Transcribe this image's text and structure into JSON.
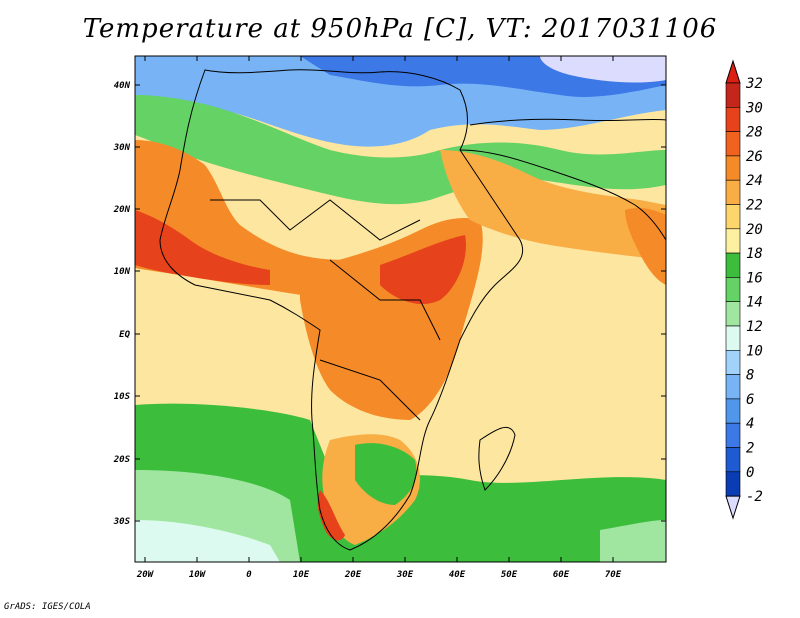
{
  "title": "Temperature at 950hPa [C], VT: 2017031106",
  "credit": "GrADS: IGES/COLA",
  "map": {
    "lat_ticks": [
      "40N",
      "30N",
      "20N",
      "10N",
      "EQ",
      "10S",
      "20S",
      "30S"
    ],
    "lon_ticks": [
      "20W",
      "10W",
      "0",
      "10E",
      "20E",
      "30E",
      "40E",
      "50E",
      "60E",
      "70E"
    ]
  },
  "colorbar": {
    "labels": [
      "32",
      "30",
      "28",
      "26",
      "24",
      "22",
      "20",
      "18",
      "16",
      "14",
      "12",
      "10",
      "8",
      "6",
      "4",
      "2",
      "0",
      "-2"
    ],
    "colors": [
      "#c4261c",
      "#e6421c",
      "#f0621e",
      "#f58a28",
      "#f9ad45",
      "#fcd56c",
      "#fdf0a0",
      "#3cbe3c",
      "#64d264",
      "#a0e6a0",
      "#dcfaf0",
      "#a0d2fa",
      "#78b4f5",
      "#5096eb",
      "#3c78e6",
      "#1e5ad2",
      "#0a3cb4",
      "#06287a"
    ],
    "over_color": "#dc1e14",
    "under_color": "#dcdcff"
  }
}
